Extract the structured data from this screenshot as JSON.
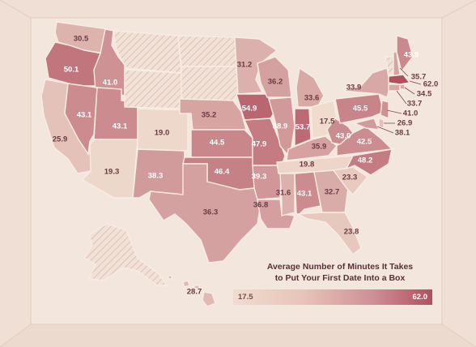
{
  "legend": {
    "title_line1": "Average Number of Minutes It Takes",
    "title_line2": "to Put Your First Date Into a Box",
    "min": "17.5",
    "max": "62.0",
    "min_value": 17.5,
    "max_value": 62.0,
    "color_low": "#f0dccf",
    "color_high": "#b0505f"
  },
  "colors": {
    "background": "#f3e6dc",
    "no_data_hatch": "#e6d3c8"
  },
  "states": [
    {
      "id": "WA",
      "value": 30.5,
      "label": "30.5"
    },
    {
      "id": "OR",
      "value": 50.1,
      "label": "50.1"
    },
    {
      "id": "CA",
      "value": 25.9,
      "label": "25.9"
    },
    {
      "id": "ID",
      "value": 41.0,
      "label": "41.0"
    },
    {
      "id": "NV",
      "value": 43.1,
      "label": "43.1"
    },
    {
      "id": "UT",
      "value": 43.1,
      "label": "43.1"
    },
    {
      "id": "AZ",
      "value": 19.3,
      "label": "19.3"
    },
    {
      "id": "MT",
      "value": null,
      "label": ""
    },
    {
      "id": "WY",
      "value": null,
      "label": ""
    },
    {
      "id": "CO",
      "value": 19.0,
      "label": "19.0"
    },
    {
      "id": "NM",
      "value": 38.3,
      "label": "38.3"
    },
    {
      "id": "ND",
      "value": null,
      "label": ""
    },
    {
      "id": "SD",
      "value": null,
      "label": ""
    },
    {
      "id": "NE",
      "value": 35.2,
      "label": "35.2"
    },
    {
      "id": "KS",
      "value": 44.5,
      "label": "44.5"
    },
    {
      "id": "OK",
      "value": 46.4,
      "label": "46.4"
    },
    {
      "id": "TX",
      "value": 36.3,
      "label": "36.3"
    },
    {
      "id": "MN",
      "value": 31.2,
      "label": "31.2"
    },
    {
      "id": "IA",
      "value": 54.9,
      "label": "54.9"
    },
    {
      "id": "MO",
      "value": 47.9,
      "label": "47.9"
    },
    {
      "id": "AR",
      "value": 39.3,
      "label": "39.3"
    },
    {
      "id": "LA",
      "value": 36.8,
      "label": "36.8"
    },
    {
      "id": "WI",
      "value": 36.2,
      "label": "36.2"
    },
    {
      "id": "IL",
      "value": 38.9,
      "label": "38.9"
    },
    {
      "id": "MI",
      "value": 33.6,
      "label": "33.6"
    },
    {
      "id": "IN",
      "value": 53.7,
      "label": "53.7"
    },
    {
      "id": "OH",
      "value": 17.5,
      "label": "17.5"
    },
    {
      "id": "KY",
      "value": 35.9,
      "label": "35.9"
    },
    {
      "id": "TN",
      "value": 19.8,
      "label": "19.8"
    },
    {
      "id": "MS",
      "value": 31.6,
      "label": "31.6"
    },
    {
      "id": "AL",
      "value": 43.1,
      "label": "43.1"
    },
    {
      "id": "GA",
      "value": 32.7,
      "label": "32.7"
    },
    {
      "id": "FL",
      "value": 23.8,
      "label": "23.8"
    },
    {
      "id": "SC",
      "value": 23.3,
      "label": "23.3"
    },
    {
      "id": "NC",
      "value": 48.2,
      "label": "48.2"
    },
    {
      "id": "VA",
      "value": 42.5,
      "label": "42.5"
    },
    {
      "id": "WV",
      "value": 43.0,
      "label": "43.0"
    },
    {
      "id": "PA",
      "value": 45.5,
      "label": "45.5"
    },
    {
      "id": "NY",
      "value": 33.9,
      "label": "33.9"
    },
    {
      "id": "VT",
      "value": null,
      "label": ""
    },
    {
      "id": "NH",
      "value": 35.7,
      "label": "35.7"
    },
    {
      "id": "ME",
      "value": 43.9,
      "label": "43.9"
    },
    {
      "id": "MA",
      "value": 62.0,
      "label": "62.0"
    },
    {
      "id": "RI",
      "value": 34.5,
      "label": "34.5"
    },
    {
      "id": "CT",
      "value": 33.7,
      "label": "33.7"
    },
    {
      "id": "NJ",
      "value": 41.0,
      "label": "41.0"
    },
    {
      "id": "DE",
      "value": 26.9,
      "label": "26.9"
    },
    {
      "id": "MD",
      "value": 38.1,
      "label": "38.1"
    },
    {
      "id": "AK",
      "value": null,
      "label": ""
    },
    {
      "id": "HI",
      "value": 28.7,
      "label": "28.7"
    }
  ]
}
